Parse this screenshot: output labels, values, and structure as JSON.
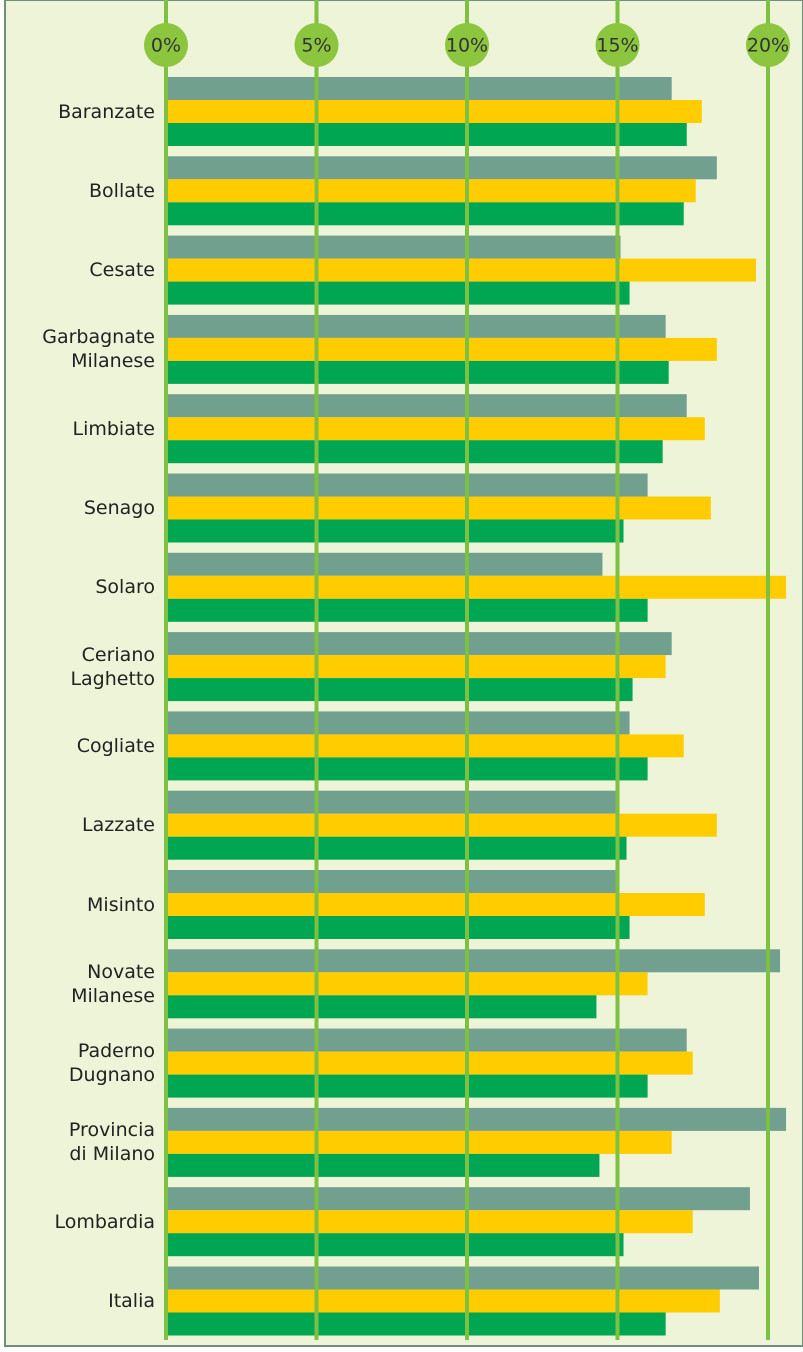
{
  "chart_data": {
    "type": "hbar",
    "categories": [
      "Baranzate",
      "Bollate",
      "Cesate",
      "Garbagnate\nMilanese",
      "Limbiate",
      "Senago",
      "Solaro",
      "Ceriano\nLaghetto",
      "Cogliate",
      "Lazzate",
      "Misinto",
      "Novate\nMilanese",
      "Paderno\nDugnano",
      "Provincia\ndi Milano",
      "Lombardia",
      "Italia"
    ],
    "series": [
      {
        "color": "#72a08e",
        "values": [
          16.8,
          18.3,
          15.1,
          16.6,
          17.3,
          16.0,
          14.5,
          16.8,
          15.4,
          15.0,
          15.0,
          20.4,
          17.3,
          20.6,
          19.4,
          19.7
        ]
      },
      {
        "color": "#ffcc00",
        "values": [
          17.8,
          17.6,
          19.6,
          18.3,
          17.9,
          18.1,
          20.6,
          16.6,
          17.2,
          18.3,
          17.9,
          16.0,
          17.5,
          16.8,
          17.5,
          18.4
        ]
      },
      {
        "color": "#00a651",
        "values": [
          17.3,
          17.2,
          15.4,
          16.7,
          16.5,
          15.2,
          16.0,
          15.5,
          16.0,
          15.3,
          15.4,
          14.3,
          16.0,
          14.4,
          15.2,
          16.6
        ]
      }
    ],
    "xlim": [
      0,
      21
    ],
    "xticks": [
      {
        "value": 0,
        "label": "0%"
      },
      {
        "value": 5,
        "label": "5%"
      },
      {
        "value": 10,
        "label": "10%"
      },
      {
        "value": 15,
        "label": "15%"
      },
      {
        "value": 20,
        "label": "20%"
      }
    ],
    "grid": true
  }
}
